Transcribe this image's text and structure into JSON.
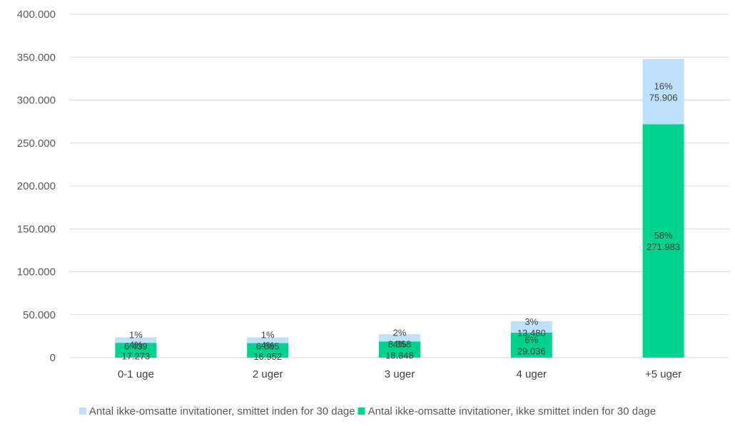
{
  "chart_data": {
    "type": "bar",
    "stacked": true,
    "categories": [
      "0-1 uge",
      "2 uger",
      "3 uger",
      "4 uger",
      "+5 uger"
    ],
    "series": [
      {
        "name": "Antal ikke-omsatte invitationer, ikke smittet inden for 30 dage",
        "color": "#00d38e",
        "values": [
          17273,
          16952,
          18848,
          29036,
          271983
        ],
        "labels": [
          "17.273",
          "16.952",
          "18.848",
          "29.036",
          "271.983"
        ],
        "percent_labels": [
          "4%",
          "4%",
          "4%",
          "6%",
          "58%"
        ]
      },
      {
        "name": "Antal ikke-omsatte invitationer, smittet inden for 30 dage",
        "color": "#bde0fb",
        "values": [
          6439,
          6665,
          8358,
          13480,
          75906
        ],
        "labels": [
          "6.439",
          "6.665",
          "8.358",
          "13.480",
          "75.906"
        ],
        "percent_labels": [
          "1%",
          "1%",
          "2%",
          "3%",
          "16%"
        ]
      }
    ],
    "ylim": [
      0,
      400000
    ],
    "yticks": [
      0,
      50000,
      100000,
      150000,
      200000,
      250000,
      300000,
      350000,
      400000
    ],
    "ytick_labels": [
      "0",
      "50.000",
      "100.000",
      "150.000",
      "200.000",
      "250.000",
      "300.000",
      "350.000",
      "400.000"
    ],
    "legend_order": [
      1,
      0
    ],
    "legend_position": "bottom",
    "grid": true,
    "title": "",
    "xlabel": "",
    "ylabel": ""
  }
}
